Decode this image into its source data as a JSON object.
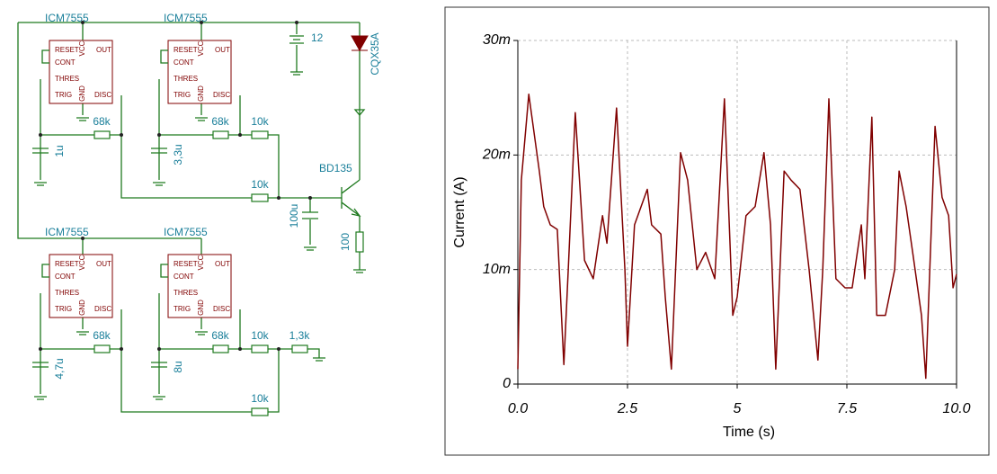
{
  "schematic": {
    "chips": [
      {
        "label": "ICM7555",
        "pins": [
          "RESET",
          "VCC",
          "OUT",
          "CONT",
          "THRES",
          "TRIG",
          "GND",
          "DISC"
        ]
      },
      {
        "label": "ICM7555",
        "pins": [
          "RESET",
          "VCC",
          "OUT",
          "CONT",
          "THRES",
          "TRIG",
          "GND",
          "DISC"
        ]
      },
      {
        "label": "ICM7555",
        "pins": [
          "RESET",
          "VCC",
          "OUT",
          "CONT",
          "THRES",
          "TRIG",
          "GND",
          "DISC"
        ]
      },
      {
        "label": "ICM7555",
        "pins": [
          "RESET",
          "VCC",
          "OUT",
          "CONT",
          "THRES",
          "TRIG",
          "GND",
          "DISC"
        ]
      }
    ],
    "resistors": [
      "68k",
      "68k",
      "10k",
      "10k",
      "68k",
      "68k",
      "10k",
      "1,3k",
      "10k",
      "100"
    ],
    "capacitors": [
      "1u",
      "3,3u",
      "100u",
      "4,7u",
      "8u"
    ],
    "battery": "12",
    "led": "CQX35A",
    "transistor": "BD135"
  },
  "chart_data": {
    "type": "line",
    "x_label": "Time (s)",
    "y_label": "Current (A)",
    "color": "#800000",
    "grid": true,
    "xlim": [
      0,
      10
    ],
    "xticks": [
      {
        "value": 0,
        "label": "0.0"
      },
      2.5,
      5,
      7.5,
      {
        "value": 10,
        "label": "10.0"
      }
    ],
    "ylim": [
      0,
      0.03
    ],
    "yticks": [
      0,
      {
        "value": 0.01,
        "label": "10m"
      },
      {
        "value": 0.02,
        "label": "20m"
      },
      {
        "value": 0.03,
        "label": "30m"
      }
    ],
    "x": [
      0,
      0.08,
      0.25,
      0.49,
      0.59,
      0.74,
      0.9,
      1.05,
      1.15,
      1.31,
      1.52,
      1.72,
      1.93,
      2.03,
      2.25,
      2.44,
      2.5,
      2.66,
      2.95,
      3.05,
      3.26,
      3.36,
      3.5,
      3.71,
      3.87,
      4.08,
      4.28,
      4.49,
      4.71,
      4.9,
      5,
      5.2,
      5.41,
      5.61,
      5.76,
      5.88,
      6.07,
      6.23,
      6.43,
      6.64,
      6.84,
      6.95,
      7.09,
      7.25,
      7.46,
      7.62,
      7.83,
      7.91,
      8.07,
      8.18,
      8.38,
      8.59,
      8.69,
      8.85,
      9,
      9.2,
      9.3,
      9.51,
      9.67,
      9.82,
      9.92,
      10
    ],
    "values": [
      0.0013,
      0.0178,
      0.0253,
      0.0186,
      0.0155,
      0.0139,
      0.0135,
      0.0017,
      0.01,
      0.0237,
      0.0108,
      0.0092,
      0.0147,
      0.0123,
      0.0241,
      0.01,
      0.0033,
      0.0139,
      0.017,
      0.0139,
      0.0131,
      0.0076,
      0.0013,
      0.0202,
      0.0178,
      0.01,
      0.0115,
      0.0092,
      0.0249,
      0.006,
      0.0076,
      0.0147,
      0.0155,
      0.0202,
      0.0139,
      0.0013,
      0.0186,
      0.0178,
      0.017,
      0.01,
      0.0021,
      0.01,
      0.0249,
      0.0092,
      0.0084,
      0.0084,
      0.0139,
      0.0092,
      0.0233,
      0.006,
      0.006,
      0.01,
      0.0186,
      0.0155,
      0.0115,
      0.006,
      0.0005,
      0.0225,
      0.0163,
      0.0147,
      0.0084,
      0.0096
    ]
  }
}
